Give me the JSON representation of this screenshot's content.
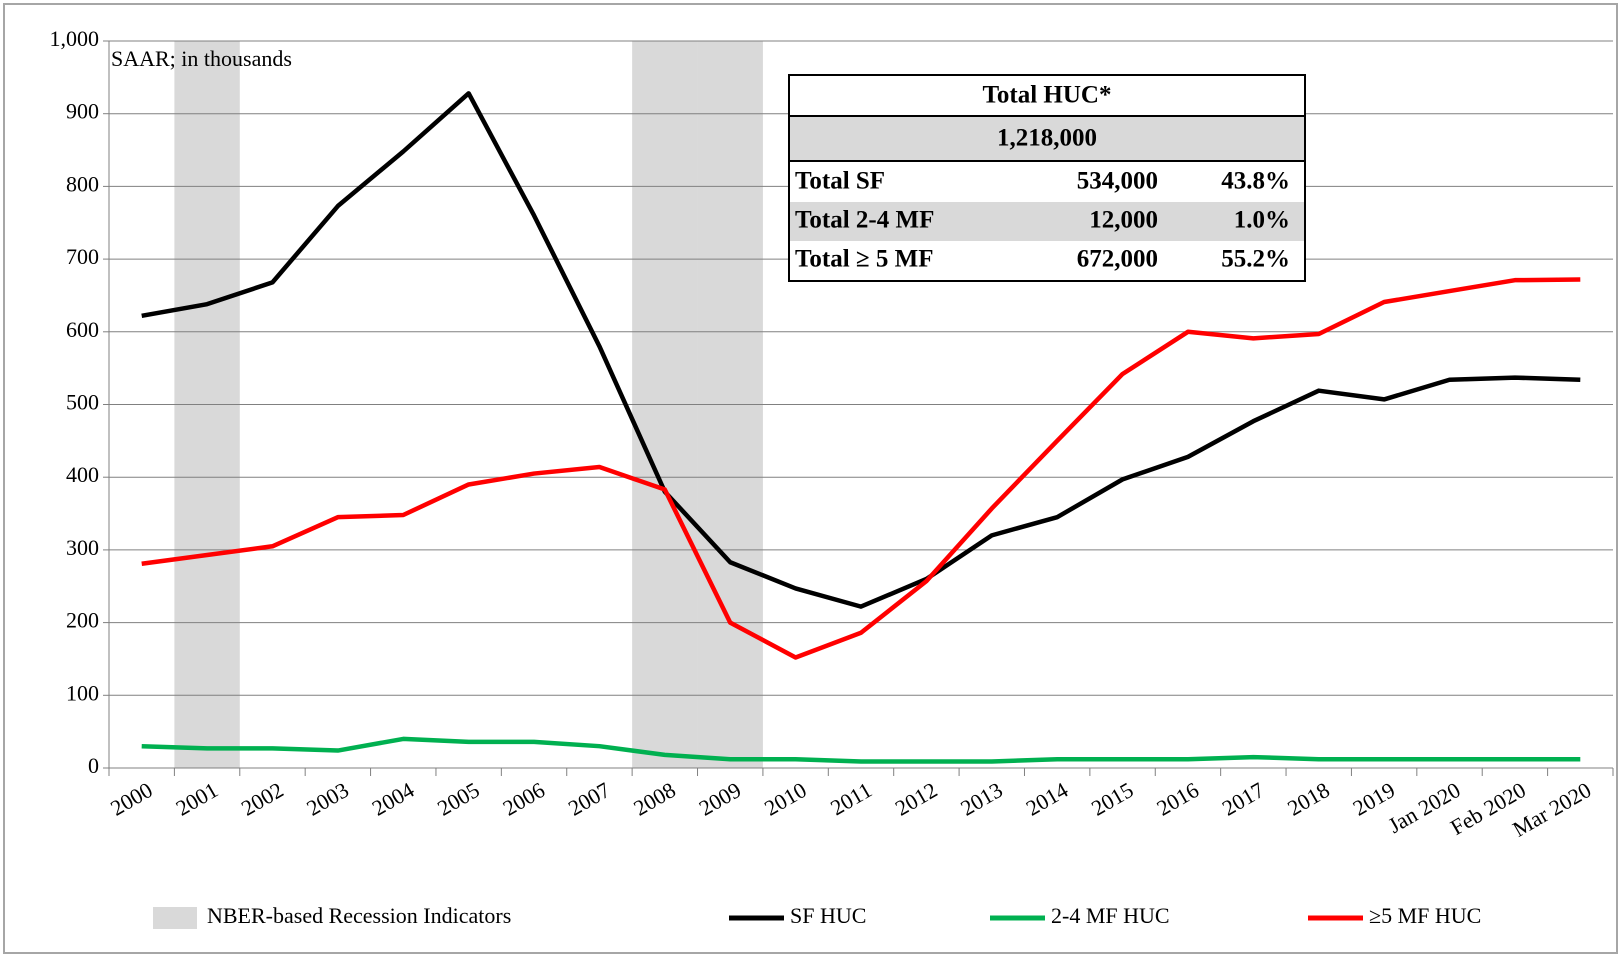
{
  "chart_data": {
    "type": "line",
    "annotation": "SAAR; in thousands",
    "categories": [
      "2000",
      "2001",
      "2002",
      "2003",
      "2004",
      "2005",
      "2006",
      "2007",
      "2008",
      "2009",
      "2010",
      "2011",
      "2012",
      "2013",
      "2014",
      "2015",
      "2016",
      "2017",
      "2018",
      "2019",
      "Jan 2020",
      "Feb 2020",
      "Mar 2020"
    ],
    "series": [
      {
        "name": "SF HUC",
        "color": "#000000",
        "values": [
          622,
          638,
          668,
          773,
          848,
          928,
          760,
          580,
          380,
          283,
          247,
          222,
          260,
          320,
          345,
          397,
          428,
          477,
          519,
          507,
          534,
          537,
          534
        ]
      },
      {
        "name": "2-4 MF HUC",
        "color": "#00b050",
        "values": [
          30,
          27,
          27,
          24,
          40,
          36,
          36,
          30,
          18,
          12,
          12,
          9,
          9,
          9,
          12,
          12,
          12,
          15,
          12,
          12,
          12,
          12,
          12
        ]
      },
      {
        "name": "≥5 MF HUC",
        "color": "#ff0000",
        "values": [
          281,
          293,
          305,
          345,
          348,
          390,
          405,
          414,
          383,
          200,
          152,
          186,
          257,
          357,
          450,
          542,
          600,
          591,
          597,
          641,
          656,
          671,
          672
        ]
      }
    ],
    "recession": {
      "name": "NBER-based Recession Indicators",
      "color": "#d9d9d9",
      "categories": [
        "2001",
        "2008",
        "2009"
      ]
    },
    "ylim": [
      0,
      1000
    ],
    "yticks": [
      0,
      100,
      200,
      300,
      400,
      500,
      600,
      700,
      800,
      900,
      {
        "value": 1000,
        "label": "1,000"
      }
    ],
    "grid": true,
    "table": {
      "title": "Total HUC*",
      "total": "1,218,000",
      "rows": [
        [
          "Total SF",
          "534,000",
          "43.8%"
        ],
        [
          "Total 2-4  MF",
          "12,000",
          "1.0%"
        ],
        [
          "Total  ≥ 5 MF",
          "672,000",
          "55.2%"
        ]
      ]
    }
  }
}
